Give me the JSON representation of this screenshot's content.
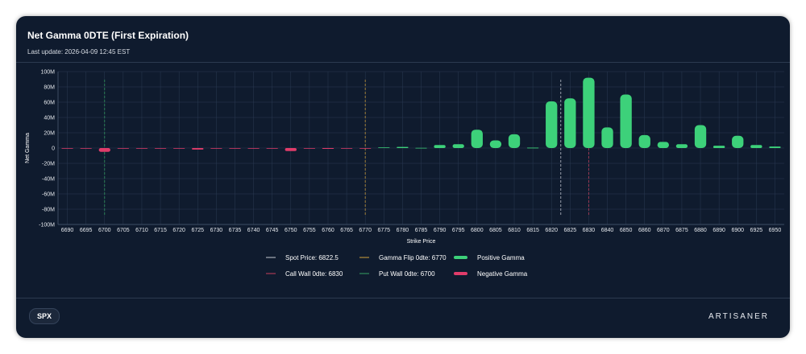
{
  "header": {
    "title": "Net Gamma 0DTE (First Expiration)",
    "last_update": "Last update: 2026-04-09 12:45 EST"
  },
  "footer": {
    "ticker_label": "SPX",
    "brand": "ARTISANER"
  },
  "colors": {
    "background": "#0f1b2e",
    "positive": "#3dd17a",
    "negative": "#e03c6a",
    "spot": "#a6acb8",
    "gamma_flip": "#b08a3a",
    "call_wall": "#a83a55",
    "put_wall": "#2f8a5a",
    "grid": "#2a3a52"
  },
  "chart_data": {
    "type": "bar",
    "title": "Net Gamma 0DTE (First Expiration)",
    "xlabel": "Strike Price",
    "ylabel": "Net Gamma",
    "ylim": [
      -100,
      100
    ],
    "y_unit": "M",
    "y_ticks": [
      "100M",
      "80M",
      "60M",
      "40M",
      "20M",
      "0",
      "-20M",
      "-40M",
      "-60M",
      "-80M",
      "-100M"
    ],
    "y_tick_values": [
      100,
      80,
      60,
      40,
      20,
      0,
      -20,
      -40,
      -60,
      -80,
      -100
    ],
    "categories": [
      "6690",
      "6695",
      "6700",
      "6705",
      "6710",
      "6715",
      "6720",
      "6725",
      "6730",
      "6735",
      "6740",
      "6745",
      "6750",
      "6755",
      "6760",
      "6765",
      "6770",
      "6775",
      "6780",
      "6785",
      "6790",
      "6795",
      "6800",
      "6805",
      "6810",
      "6815",
      "6820",
      "6825",
      "6830",
      "6840",
      "6850",
      "6860",
      "6870",
      "6875",
      "6880",
      "6890",
      "6900",
      "6925",
      "6950"
    ],
    "values": [
      -0.3,
      -0.4,
      -5,
      -0.3,
      -0.5,
      -0.3,
      -0.2,
      -2,
      -0.6,
      -0.3,
      -0.6,
      -0.4,
      -4,
      -0.7,
      -1,
      -0.3,
      -0.4,
      0.8,
      1.5,
      0.3,
      4,
      5,
      24,
      10,
      18,
      0.5,
      61,
      65,
      92,
      27,
      70,
      17,
      8,
      5,
      30,
      3,
      16,
      4,
      2
    ],
    "grid": true,
    "reference_lines": [
      {
        "label": "Spot Price: 6822.5",
        "x": 6822.5,
        "color": "#a6acb8"
      },
      {
        "label": "Gamma Flip 0dte: 6770",
        "x": 6770,
        "color": "#b08a3a"
      },
      {
        "label": "Call Wall 0dte: 6830",
        "x": 6830,
        "color": "#a83a55"
      },
      {
        "label": "Put Wall 0dte: 6700",
        "x": 6700,
        "color": "#2f8a5a"
      }
    ],
    "legend": {
      "placement": "bottom-center",
      "items": [
        {
          "label": "Spot Price: 6822.5",
          "kind": "line",
          "color": "#a6acb8"
        },
        {
          "label": "Gamma Flip 0dte: 6770",
          "kind": "line",
          "color": "#b08a3a"
        },
        {
          "label": "Positive Gamma",
          "kind": "bar",
          "color": "#3dd17a"
        },
        {
          "label": "Call Wall 0dte: 6830",
          "kind": "line",
          "color": "#a83a55"
        },
        {
          "label": "Put Wall 0dte: 6700",
          "kind": "line",
          "color": "#2f8a5a"
        },
        {
          "label": "Negative Gamma",
          "kind": "bar",
          "color": "#e03c6a"
        }
      ]
    }
  }
}
